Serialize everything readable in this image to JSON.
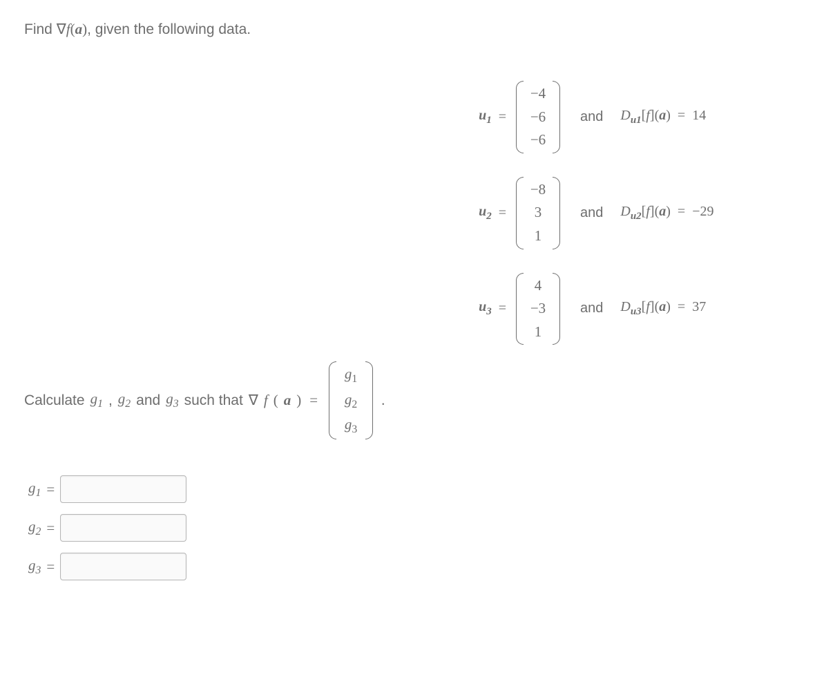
{
  "prompt": {
    "prefix": "Find ",
    "grad": "∇",
    "f": "f",
    "arg_open": "(",
    "a": "a",
    "arg_close": ")",
    "suffix": ", given the following data."
  },
  "equations": [
    {
      "u_label": "u",
      "u_sub": "1",
      "eq": "=",
      "vector": [
        "−4",
        "−6",
        "−6"
      ],
      "and": "and",
      "D": "D",
      "D_sub_u": "u",
      "D_sub_idx": "1",
      "bracket_open": "[",
      "f": "f",
      "bracket_close": "]",
      "paren_open": "(",
      "arg": "a",
      "paren_close": ")",
      "eq2": "=",
      "value": "14"
    },
    {
      "u_label": "u",
      "u_sub": "2",
      "eq": "=",
      "vector": [
        "−8",
        "3",
        "1"
      ],
      "and": "and",
      "D": "D",
      "D_sub_u": "u",
      "D_sub_idx": "2",
      "bracket_open": "[",
      "f": "f",
      "bracket_close": "]",
      "paren_open": "(",
      "arg": "a",
      "paren_close": ")",
      "eq2": "=",
      "value": "−29"
    },
    {
      "u_label": "u",
      "u_sub": "3",
      "eq": "=",
      "vector": [
        "4",
        "−3",
        "1"
      ],
      "and": "and",
      "D": "D",
      "D_sub_u": "u",
      "D_sub_idx": "3",
      "bracket_open": "[",
      "f": "f",
      "bracket_close": "]",
      "paren_open": "(",
      "arg": "a",
      "paren_close": ")",
      "eq2": "=",
      "value": "37"
    }
  ],
  "calc": {
    "prefix": "Calculate ",
    "g1": "g",
    "g1_sub": "1",
    "sep1": ", ",
    "g2": "g",
    "g2_sub": "2",
    "and": " and ",
    "g3": "g",
    "g3_sub": "3",
    "such_that": " such that ",
    "grad": "∇",
    "f": "f",
    "paren_open": "(",
    "a": "a",
    "paren_close": ")",
    "eq": "=",
    "vector_labels": [
      "g",
      "g",
      "g"
    ],
    "vector_subs": [
      "1",
      "2",
      "3"
    ],
    "period": "."
  },
  "answers": [
    {
      "g": "g",
      "sub": "1",
      "eq": "="
    },
    {
      "g": "g",
      "sub": "2",
      "eq": "="
    },
    {
      "g": "g",
      "sub": "3",
      "eq": "="
    }
  ],
  "colors": {
    "text": "#6e6e6e",
    "background": "#ffffff",
    "input_border": "#b5b5b5"
  }
}
